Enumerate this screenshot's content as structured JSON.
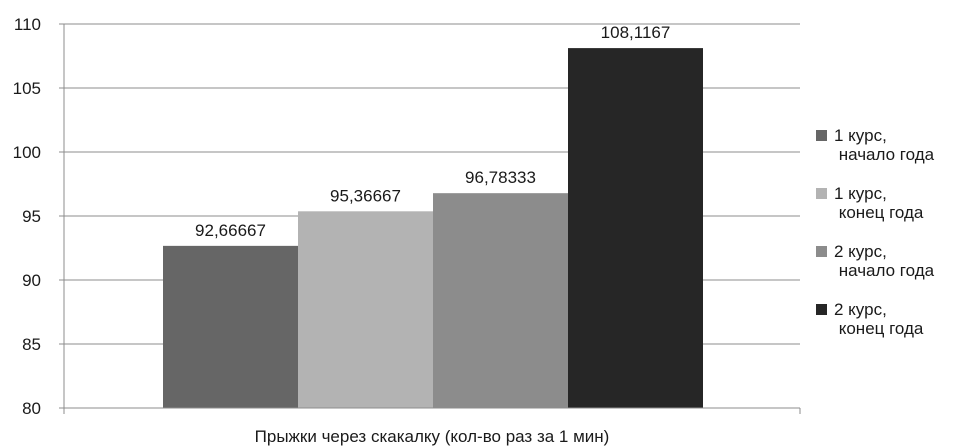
{
  "chart_data": {
    "type": "bar",
    "xlabel": "Прыжки через скакалку  (кол-во раз за 1 мин)",
    "ylabel": "",
    "ylim": [
      80,
      110
    ],
    "yticks": [
      80,
      85,
      90,
      95,
      100,
      105,
      110
    ],
    "grid": true,
    "legend_position": "right",
    "categories": [
      "Прыжки через скакалку  (кол-во раз за 1 мин)"
    ],
    "series": [
      {
        "name": "1 курс,\n начало года",
        "values": [
          92.66667
        ],
        "label": "92,66667",
        "color": "#666666"
      },
      {
        "name": "1 курс,\n конец года",
        "values": [
          95.36667
        ],
        "label": "95,36667",
        "color": "#b3b3b3"
      },
      {
        "name": "2 курс,\n начало года",
        "values": [
          96.78333
        ],
        "label": "96,78333",
        "color": "#8c8c8c"
      },
      {
        "name": "2 курс,\n конец года",
        "values": [
          108.1167
        ],
        "label": "108,1167",
        "color": "#262626"
      }
    ]
  }
}
